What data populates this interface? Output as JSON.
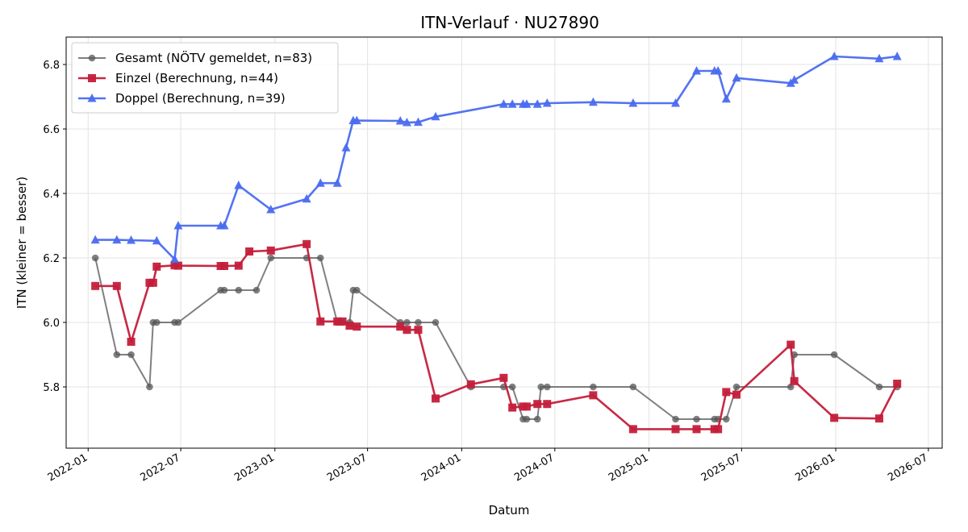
{
  "chart_data": {
    "type": "line",
    "title": "ITN-Verlauf · NU27890",
    "xlabel": "Datum",
    "ylabel": "ITN  (kleiner = besser)",
    "x_ticks": [
      "2022-01",
      "2022-07",
      "2023-01",
      "2023-07",
      "2024-01",
      "2024-07",
      "2025-01",
      "2025-07",
      "2026-01",
      "2026-07"
    ],
    "xlim": [
      "2021-11-19",
      "2026-07-28"
    ],
    "y_ticks": [
      "5.8",
      "6.0",
      "6.2",
      "6.4",
      "6.6",
      "6.8"
    ],
    "ylim": [
      5.61,
      6.885
    ],
    "grid": true,
    "legend_position": "top-left",
    "colors": {
      "gesamt": "#555555",
      "einzel": "#c41e3a",
      "doppel": "#4a6cf0"
    },
    "series": [
      {
        "name": "Gesamt (NÖTV gemeldet, n=83)",
        "marker": "circle",
        "points": [
          [
            "2022-01-15",
            6.2
          ],
          [
            "2022-02-26",
            5.9
          ],
          [
            "2022-03-26",
            5.9
          ],
          [
            "2022-05-01",
            5.8
          ],
          [
            "2022-05-08",
            6.0
          ],
          [
            "2022-05-15",
            6.0
          ],
          [
            "2022-06-19",
            6.0
          ],
          [
            "2022-06-26",
            6.0
          ],
          [
            "2022-09-17",
            6.1
          ],
          [
            "2022-09-24",
            6.1
          ],
          [
            "2022-10-22",
            6.1
          ],
          [
            "2022-11-26",
            6.1
          ],
          [
            "2022-12-24",
            6.2
          ],
          [
            "2023-03-04",
            6.2
          ],
          [
            "2023-03-31",
            6.2
          ],
          [
            "2023-05-03",
            6.0
          ],
          [
            "2023-05-13",
            6.0
          ],
          [
            "2023-05-27",
            6.0
          ],
          [
            "2023-06-03",
            6.1
          ],
          [
            "2023-06-10",
            6.1
          ],
          [
            "2023-09-03",
            6.0
          ],
          [
            "2023-09-16",
            6.0
          ],
          [
            "2023-10-08",
            6.0
          ],
          [
            "2023-11-11",
            6.0
          ],
          [
            "2024-01-19",
            5.8
          ],
          [
            "2024-03-23",
            5.8
          ],
          [
            "2024-04-09",
            5.8
          ],
          [
            "2024-04-30",
            5.7
          ],
          [
            "2024-05-07",
            5.7
          ],
          [
            "2024-05-28",
            5.7
          ],
          [
            "2024-06-04",
            5.8
          ],
          [
            "2024-06-16",
            5.8
          ],
          [
            "2024-09-14",
            5.8
          ],
          [
            "2024-12-01",
            5.8
          ],
          [
            "2025-02-22",
            5.7
          ],
          [
            "2025-04-04",
            5.7
          ],
          [
            "2025-05-09",
            5.7
          ],
          [
            "2025-05-16",
            5.7
          ],
          [
            "2025-06-01",
            5.7
          ],
          [
            "2025-06-21",
            5.8
          ],
          [
            "2025-10-05",
            5.8
          ],
          [
            "2025-10-12",
            5.9
          ],
          [
            "2025-12-29",
            5.9
          ],
          [
            "2026-03-27",
            5.8
          ],
          [
            "2026-05-01",
            5.8
          ]
        ]
      },
      {
        "name": "Einzel (Berechnung, n=44)",
        "marker": "square",
        "points": [
          [
            "2022-01-15",
            6.113
          ],
          [
            "2022-02-26",
            6.113
          ],
          [
            "2022-03-26",
            5.94
          ],
          [
            "2022-05-01",
            6.123
          ],
          [
            "2022-05-08",
            6.123
          ],
          [
            "2022-05-15",
            6.173
          ],
          [
            "2022-06-19",
            6.177
          ],
          [
            "2022-06-26",
            6.176
          ],
          [
            "2022-09-17",
            6.175
          ],
          [
            "2022-09-24",
            6.175
          ],
          [
            "2022-10-22",
            6.176
          ],
          [
            "2022-11-12",
            6.22
          ],
          [
            "2022-12-24",
            6.223
          ],
          [
            "2023-03-04",
            6.243
          ],
          [
            "2023-03-31",
            6.003
          ],
          [
            "2023-05-03",
            6.003
          ],
          [
            "2023-05-13",
            6.003
          ],
          [
            "2023-05-27",
            5.99
          ],
          [
            "2023-06-10",
            5.987
          ],
          [
            "2023-09-03",
            5.987
          ],
          [
            "2023-09-16",
            5.977
          ],
          [
            "2023-10-08",
            5.977
          ],
          [
            "2023-11-11",
            5.764
          ],
          [
            "2024-01-19",
            5.808
          ],
          [
            "2024-03-23",
            5.828
          ],
          [
            "2024-04-09",
            5.736
          ],
          [
            "2024-04-30",
            5.739
          ],
          [
            "2024-05-07",
            5.739
          ],
          [
            "2024-05-28",
            5.747
          ],
          [
            "2024-06-16",
            5.747
          ],
          [
            "2024-09-14",
            5.774
          ],
          [
            "2024-12-01",
            5.669
          ],
          [
            "2025-02-22",
            5.669
          ],
          [
            "2025-04-04",
            5.669
          ],
          [
            "2025-05-09",
            5.669
          ],
          [
            "2025-05-16",
            5.669
          ],
          [
            "2025-06-01",
            5.784
          ],
          [
            "2025-06-21",
            5.776
          ],
          [
            "2025-10-05",
            5.931
          ],
          [
            "2025-10-12",
            5.818
          ],
          [
            "2025-12-29",
            5.704
          ],
          [
            "2026-03-27",
            5.702
          ],
          [
            "2026-05-01",
            5.81
          ]
        ]
      },
      {
        "name": "Doppel (Berechnung, n=39)",
        "marker": "triangle",
        "points": [
          [
            "2022-01-15",
            6.256
          ],
          [
            "2022-02-26",
            6.256
          ],
          [
            "2022-03-26",
            6.255
          ],
          [
            "2022-05-15",
            6.253
          ],
          [
            "2022-06-19",
            6.196
          ],
          [
            "2022-06-26",
            6.3
          ],
          [
            "2022-09-17",
            6.3
          ],
          [
            "2022-09-24",
            6.3
          ],
          [
            "2022-10-22",
            6.425
          ],
          [
            "2022-12-24",
            6.35
          ],
          [
            "2023-03-04",
            6.383
          ],
          [
            "2023-03-31",
            6.432
          ],
          [
            "2023-05-03",
            6.432
          ],
          [
            "2023-05-20",
            6.542
          ],
          [
            "2023-06-03",
            6.626
          ],
          [
            "2023-06-10",
            6.626
          ],
          [
            "2023-09-03",
            6.625
          ],
          [
            "2023-09-16",
            6.62
          ],
          [
            "2023-10-08",
            6.621
          ],
          [
            "2023-11-11",
            6.638
          ],
          [
            "2024-03-23",
            6.677
          ],
          [
            "2024-04-09",
            6.677
          ],
          [
            "2024-04-30",
            6.677
          ],
          [
            "2024-05-07",
            6.677
          ],
          [
            "2024-05-28",
            6.677
          ],
          [
            "2024-06-16",
            6.68
          ],
          [
            "2024-09-14",
            6.683
          ],
          [
            "2024-12-01",
            6.68
          ],
          [
            "2025-02-22",
            6.68
          ],
          [
            "2025-04-04",
            6.78
          ],
          [
            "2025-05-09",
            6.78
          ],
          [
            "2025-05-16",
            6.78
          ],
          [
            "2025-06-01",
            6.693
          ],
          [
            "2025-06-21",
            6.758
          ],
          [
            "2025-10-05",
            6.742
          ],
          [
            "2025-10-12",
            6.752
          ],
          [
            "2025-12-29",
            6.825
          ],
          [
            "2026-03-27",
            6.818
          ],
          [
            "2026-05-01",
            6.825
          ]
        ]
      }
    ]
  }
}
